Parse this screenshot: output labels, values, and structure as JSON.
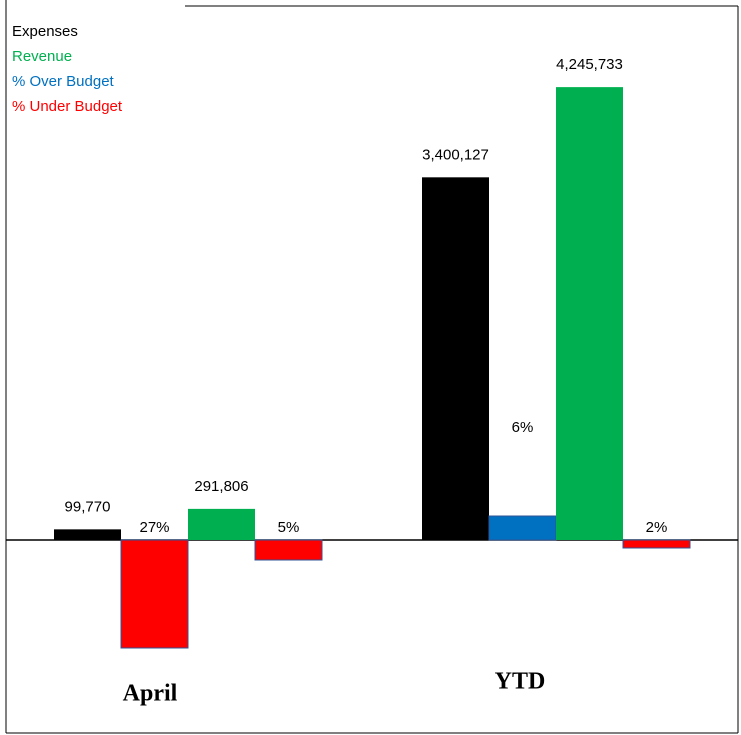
{
  "chart_data": {
    "type": "bar",
    "categories": [
      "April",
      "YTD"
    ],
    "series": [
      {
        "name": "Expenses",
        "color": "#000000",
        "values": [
          99770,
          3400127
        ],
        "value_labels": [
          "99,770",
          "3,400,127"
        ]
      },
      {
        "axis": "y2",
        "values": [
          -27,
          6
        ],
        "value_labels": [
          "27%",
          "6%"
        ]
      },
      {
        "name": "Revenue",
        "color": "#00b050",
        "values": [
          291806,
          4245733
        ],
        "value_labels": [
          "291,806",
          "4,245,733"
        ]
      },
      {
        "axis": "y2",
        "values": [
          -5,
          -2
        ],
        "value_labels": [
          "5%",
          "2%"
        ]
      }
    ],
    "variance_colors": {
      "over": {
        "name": "% Over Budget",
        "color": "#0070c0"
      },
      "under": {
        "name": "% Under Budget",
        "color": "#ff0000"
      }
    },
    "ylim": [
      -1500000,
      4500000
    ],
    "y2lim": [
      -40,
      120
    ]
  }
}
